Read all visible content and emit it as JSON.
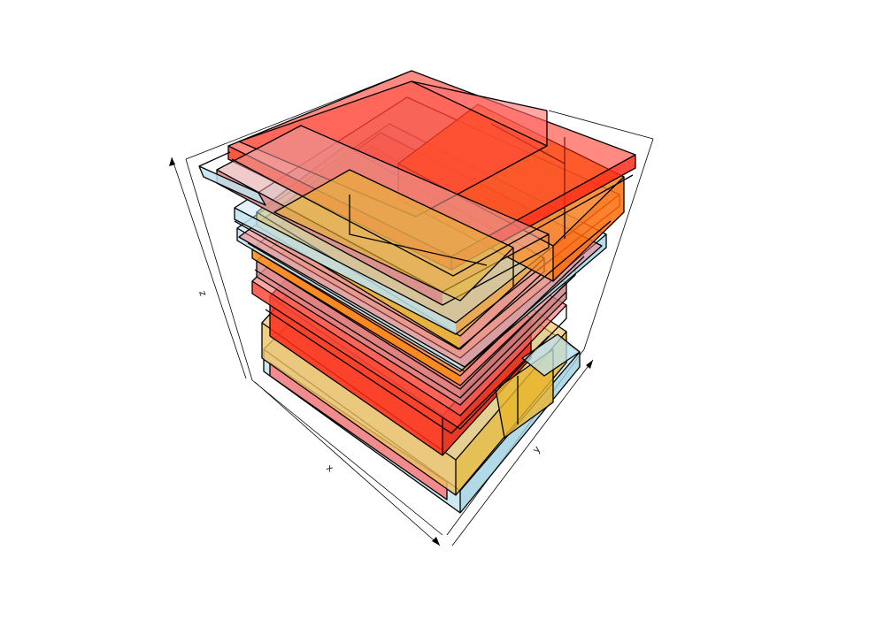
{
  "axes": {
    "x_label": "x",
    "y_label": "y",
    "z_label": "z"
  },
  "colors": {
    "red": "#ff2a1a",
    "orange": "#ff7a12",
    "amber": "#e9b530",
    "gold": "#f0c060",
    "light_blue": "#bfe3ef",
    "pink_red": "#ff6b6b"
  }
}
